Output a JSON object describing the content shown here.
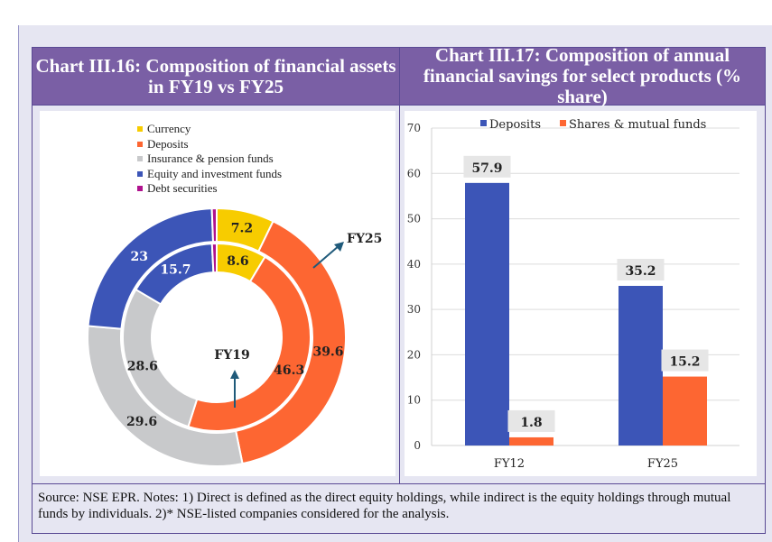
{
  "left_title": "Chart III.16: Composition of financial assets in FY19 vs FY25",
  "right_title": "Chart III.17: Composition of annual financial savings for select products (% share)",
  "footer": "Source: NSE EPR. Notes: 1) Direct is defined as the direct equity holdings, while indirect is the equity holdings through mutual funds by individuals. 2)* NSE-listed companies considered for the analysis.",
  "chart_data": [
    {
      "type": "pie",
      "variant": "double-donut",
      "title": "Chart III.16: Composition of financial assets in FY19 vs FY25",
      "categories": [
        "Currency",
        "Deposits",
        "Insurance & pension funds",
        "Equity and investment funds",
        "Debt securities"
      ],
      "colors": [
        "#f7cc00",
        "#fd6632",
        "#c8c9cb",
        "#3c55b7",
        "#b0128e"
      ],
      "legend_position": "top-left",
      "series": [
        {
          "name": "FY19",
          "ring": "inner",
          "values": [
            8.6,
            46.3,
            28.6,
            15.7,
            0.8
          ],
          "labels": [
            "8.6",
            "46.3",
            "28.6",
            "15.7",
            ""
          ]
        },
        {
          "name": "FY25",
          "ring": "outer",
          "values": [
            7.2,
            39.6,
            29.6,
            23,
            0.6
          ],
          "labels": [
            "7.2",
            "39.6",
            "29.6",
            "23",
            ""
          ]
        }
      ]
    },
    {
      "type": "bar",
      "title": "Chart III.17: Composition of annual financial savings for select products (% share)",
      "categories": [
        "FY12",
        "FY25"
      ],
      "series": [
        {
          "name": "Deposits",
          "color": "#3c55b7",
          "values": [
            57.9,
            35.2
          ]
        },
        {
          "name": "Shares & mutual funds",
          "color": "#fd6632",
          "values": [
            1.8,
            15.2
          ]
        }
      ],
      "ylim": [
        0,
        70
      ],
      "yticks": [
        0,
        10,
        20,
        30,
        40,
        50,
        60,
        70
      ],
      "grid": true,
      "legend_position": "top"
    }
  ]
}
